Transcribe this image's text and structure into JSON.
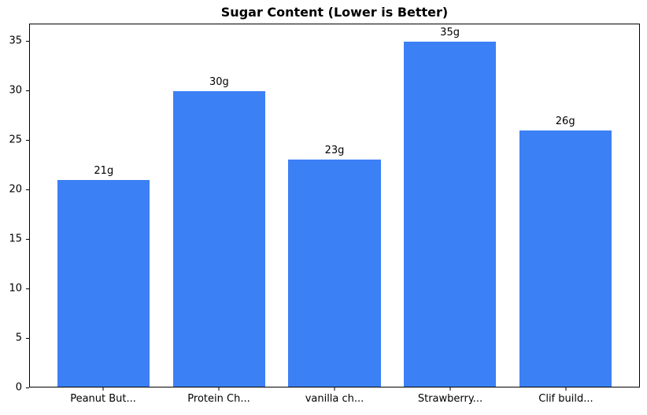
{
  "chart_data": {
    "type": "bar",
    "title": "Sugar Content (Lower is Better)",
    "categories": [
      "Peanut But...",
      "Protein Ch...",
      "vanilla ch...",
      "Strawberry...",
      "Clif build..."
    ],
    "values": [
      21,
      30,
      23,
      35,
      26
    ],
    "value_labels": [
      "21g",
      "30g",
      "23g",
      "35g",
      "26g"
    ],
    "xlabel": "",
    "ylabel": "",
    "ylim": [
      0,
      36.75
    ],
    "yticks": [
      0,
      5,
      10,
      15,
      20,
      25,
      30,
      35
    ],
    "bar_color": "#3c80f5",
    "bar_width_fraction": 0.8,
    "grid": false,
    "legend": null,
    "frame": "full-box",
    "background_color": "#ffffff"
  }
}
